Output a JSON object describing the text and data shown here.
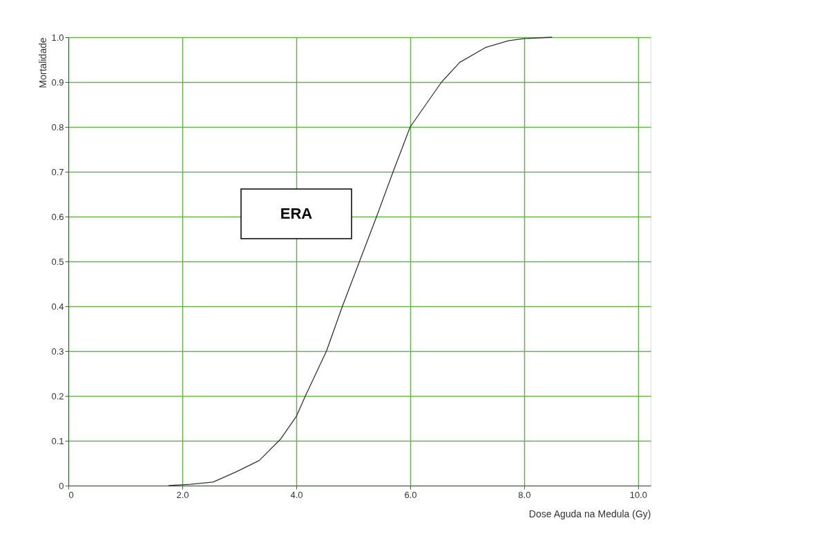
{
  "chart_data": {
    "type": "line",
    "xlabel": "Dose Aguda na Medula (Gy)",
    "ylabel": "Mortalidade",
    "annotations": [
      "ERA"
    ],
    "x": [
      1.76,
      2.14,
      2.54,
      2.95,
      3.35,
      3.72,
      4.0,
      4.16,
      4.53,
      4.81,
      5.11,
      5.41,
      5.7,
      6.0,
      6.55,
      6.87,
      7.32,
      7.72,
      8.0,
      8.49
    ],
    "series": [
      {
        "color": "#333333",
        "values": [
          0,
          0.003,
          0.008,
          0.031,
          0.056,
          0.103,
          0.154,
          0.2,
          0.3,
          0.4,
          0.5,
          0.6,
          0.7,
          0.8,
          0.9,
          0.944,
          0.977,
          0.992,
          0.997,
          1.0
        ]
      }
    ],
    "xlim": [
      0,
      10.22
    ],
    "ylim": [
      0,
      1.0
    ],
    "xticks": [
      0,
      {
        "value": 2,
        "label": "2.0"
      },
      {
        "value": 4,
        "label": "4.0"
      },
      {
        "value": 6,
        "label": "6.0"
      },
      {
        "value": 8,
        "label": "8.0"
      },
      {
        "value": 10,
        "label": "10.0"
      }
    ],
    "yticks": [
      0,
      0.1,
      0.2,
      0.3,
      0.4,
      0.5,
      0.6,
      0.7,
      0.8,
      0.9,
      {
        "value": 1,
        "label": "1.0"
      }
    ],
    "grid": true,
    "marker": "none",
    "line_style": "solid"
  }
}
